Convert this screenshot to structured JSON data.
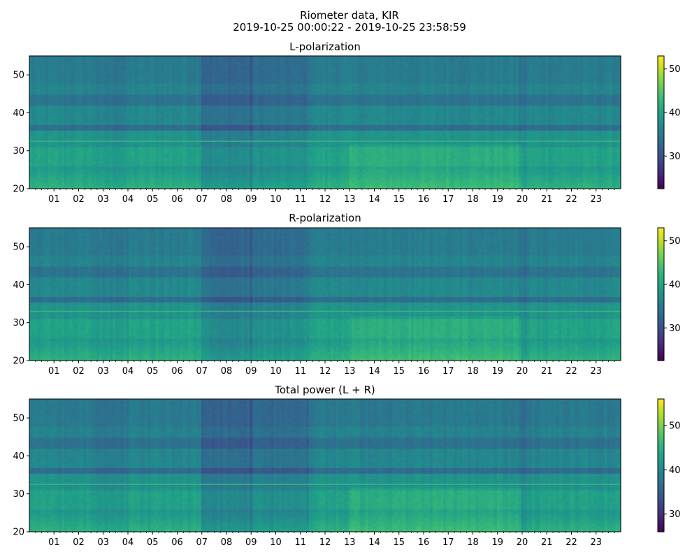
{
  "figure": {
    "title_line1": "Riometer data, KIR",
    "title_line2": "2019-10-25 00:00:22 - 2019-10-25 23:58:59"
  },
  "colormap": "viridis",
  "chart_data": [
    {
      "type": "heatmap",
      "title": "L-polarization",
      "xlabel": "",
      "ylabel": "",
      "x_tick_labels": [
        "01",
        "02",
        "03",
        "04",
        "05",
        "06",
        "07",
        "08",
        "09",
        "10",
        "11",
        "12",
        "13",
        "14",
        "15",
        "16",
        "17",
        "18",
        "19",
        "20",
        "21",
        "22",
        "23"
      ],
      "x_range_hours": [
        0,
        24
      ],
      "y_ticks": [
        20,
        30,
        40,
        50
      ],
      "ylim": [
        20,
        55
      ],
      "colorbar": {
        "ticks": [
          30,
          40,
          50
        ],
        "range": [
          22.5,
          53
        ]
      },
      "features": {
        "bright_band_y": [
          20,
          26
        ],
        "horizontal_line_y": 32.5,
        "dark_band_y": [
          35.5,
          37
        ],
        "dark_hour_intervals": [
          [
            7.0,
            9.0
          ],
          [
            9.0,
            11.3
          ]
        ],
        "bright_hour_interval": [
          13.0,
          20.0
        ]
      }
    },
    {
      "type": "heatmap",
      "title": "R-polarization",
      "xlabel": "",
      "ylabel": "",
      "x_tick_labels": [
        "01",
        "02",
        "03",
        "04",
        "05",
        "06",
        "07",
        "08",
        "09",
        "10",
        "11",
        "12",
        "13",
        "14",
        "15",
        "16",
        "17",
        "18",
        "19",
        "20",
        "21",
        "22",
        "23"
      ],
      "x_range_hours": [
        0,
        24
      ],
      "y_ticks": [
        20,
        30,
        40,
        50
      ],
      "ylim": [
        20,
        55
      ],
      "colorbar": {
        "ticks": [
          30,
          40,
          50
        ],
        "range": [
          22.5,
          53
        ]
      },
      "features": {
        "bright_band_y": [
          20,
          26
        ],
        "horizontal_line_y": 33,
        "dark_band_y": [
          35.5,
          37
        ],
        "dark_hour_intervals": [
          [
            7.0,
            9.0
          ],
          [
            9.0,
            11.3
          ]
        ],
        "bright_hour_interval": [
          13.0,
          20.0
        ]
      }
    },
    {
      "type": "heatmap",
      "title": "Total power (L + R)",
      "xlabel": "",
      "ylabel": "",
      "x_tick_labels": [
        "01",
        "02",
        "03",
        "04",
        "05",
        "06",
        "07",
        "08",
        "09",
        "10",
        "11",
        "12",
        "13",
        "14",
        "15",
        "16",
        "17",
        "18",
        "19",
        "20",
        "21",
        "22",
        "23"
      ],
      "x_range_hours": [
        0,
        24
      ],
      "y_ticks": [
        20,
        30,
        40,
        50
      ],
      "ylim": [
        20,
        55
      ],
      "colorbar": {
        "ticks": [
          30,
          40,
          50
        ],
        "range": [
          26,
          56
        ]
      },
      "features": {
        "bright_band_y": [
          20,
          26
        ],
        "horizontal_line_y": 32.5,
        "dark_band_y": [
          35.5,
          37
        ],
        "dark_hour_intervals": [
          [
            7.0,
            9.0
          ],
          [
            9.0,
            11.3
          ]
        ],
        "bright_hour_interval": [
          13.0,
          20.0
        ]
      }
    }
  ]
}
